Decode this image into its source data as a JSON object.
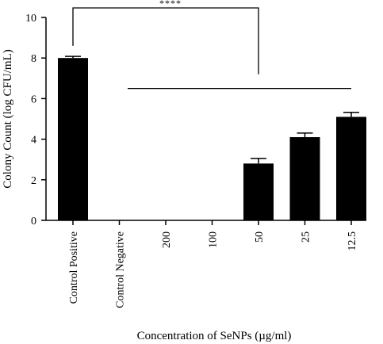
{
  "chart_data": {
    "type": "bar",
    "categories": [
      "Control Positive",
      "Control Negative",
      "200",
      "100",
      "50",
      "25",
      "12.5"
    ],
    "values": [
      8.0,
      0,
      0,
      0,
      2.8,
      4.1,
      5.1
    ],
    "errors": [
      0.08,
      0,
      0,
      0,
      0.25,
      0.2,
      0.22
    ],
    "xlabel": "Concentration of SeNPs (µg/ml)",
    "ylabel": "Colony Count (log CFU/mL)",
    "ylim": [
      0,
      10
    ],
    "yticks": [
      "0",
      "2",
      "4",
      "6",
      "8",
      "10"
    ],
    "significance_label": "****",
    "bar_color": "#000000"
  }
}
